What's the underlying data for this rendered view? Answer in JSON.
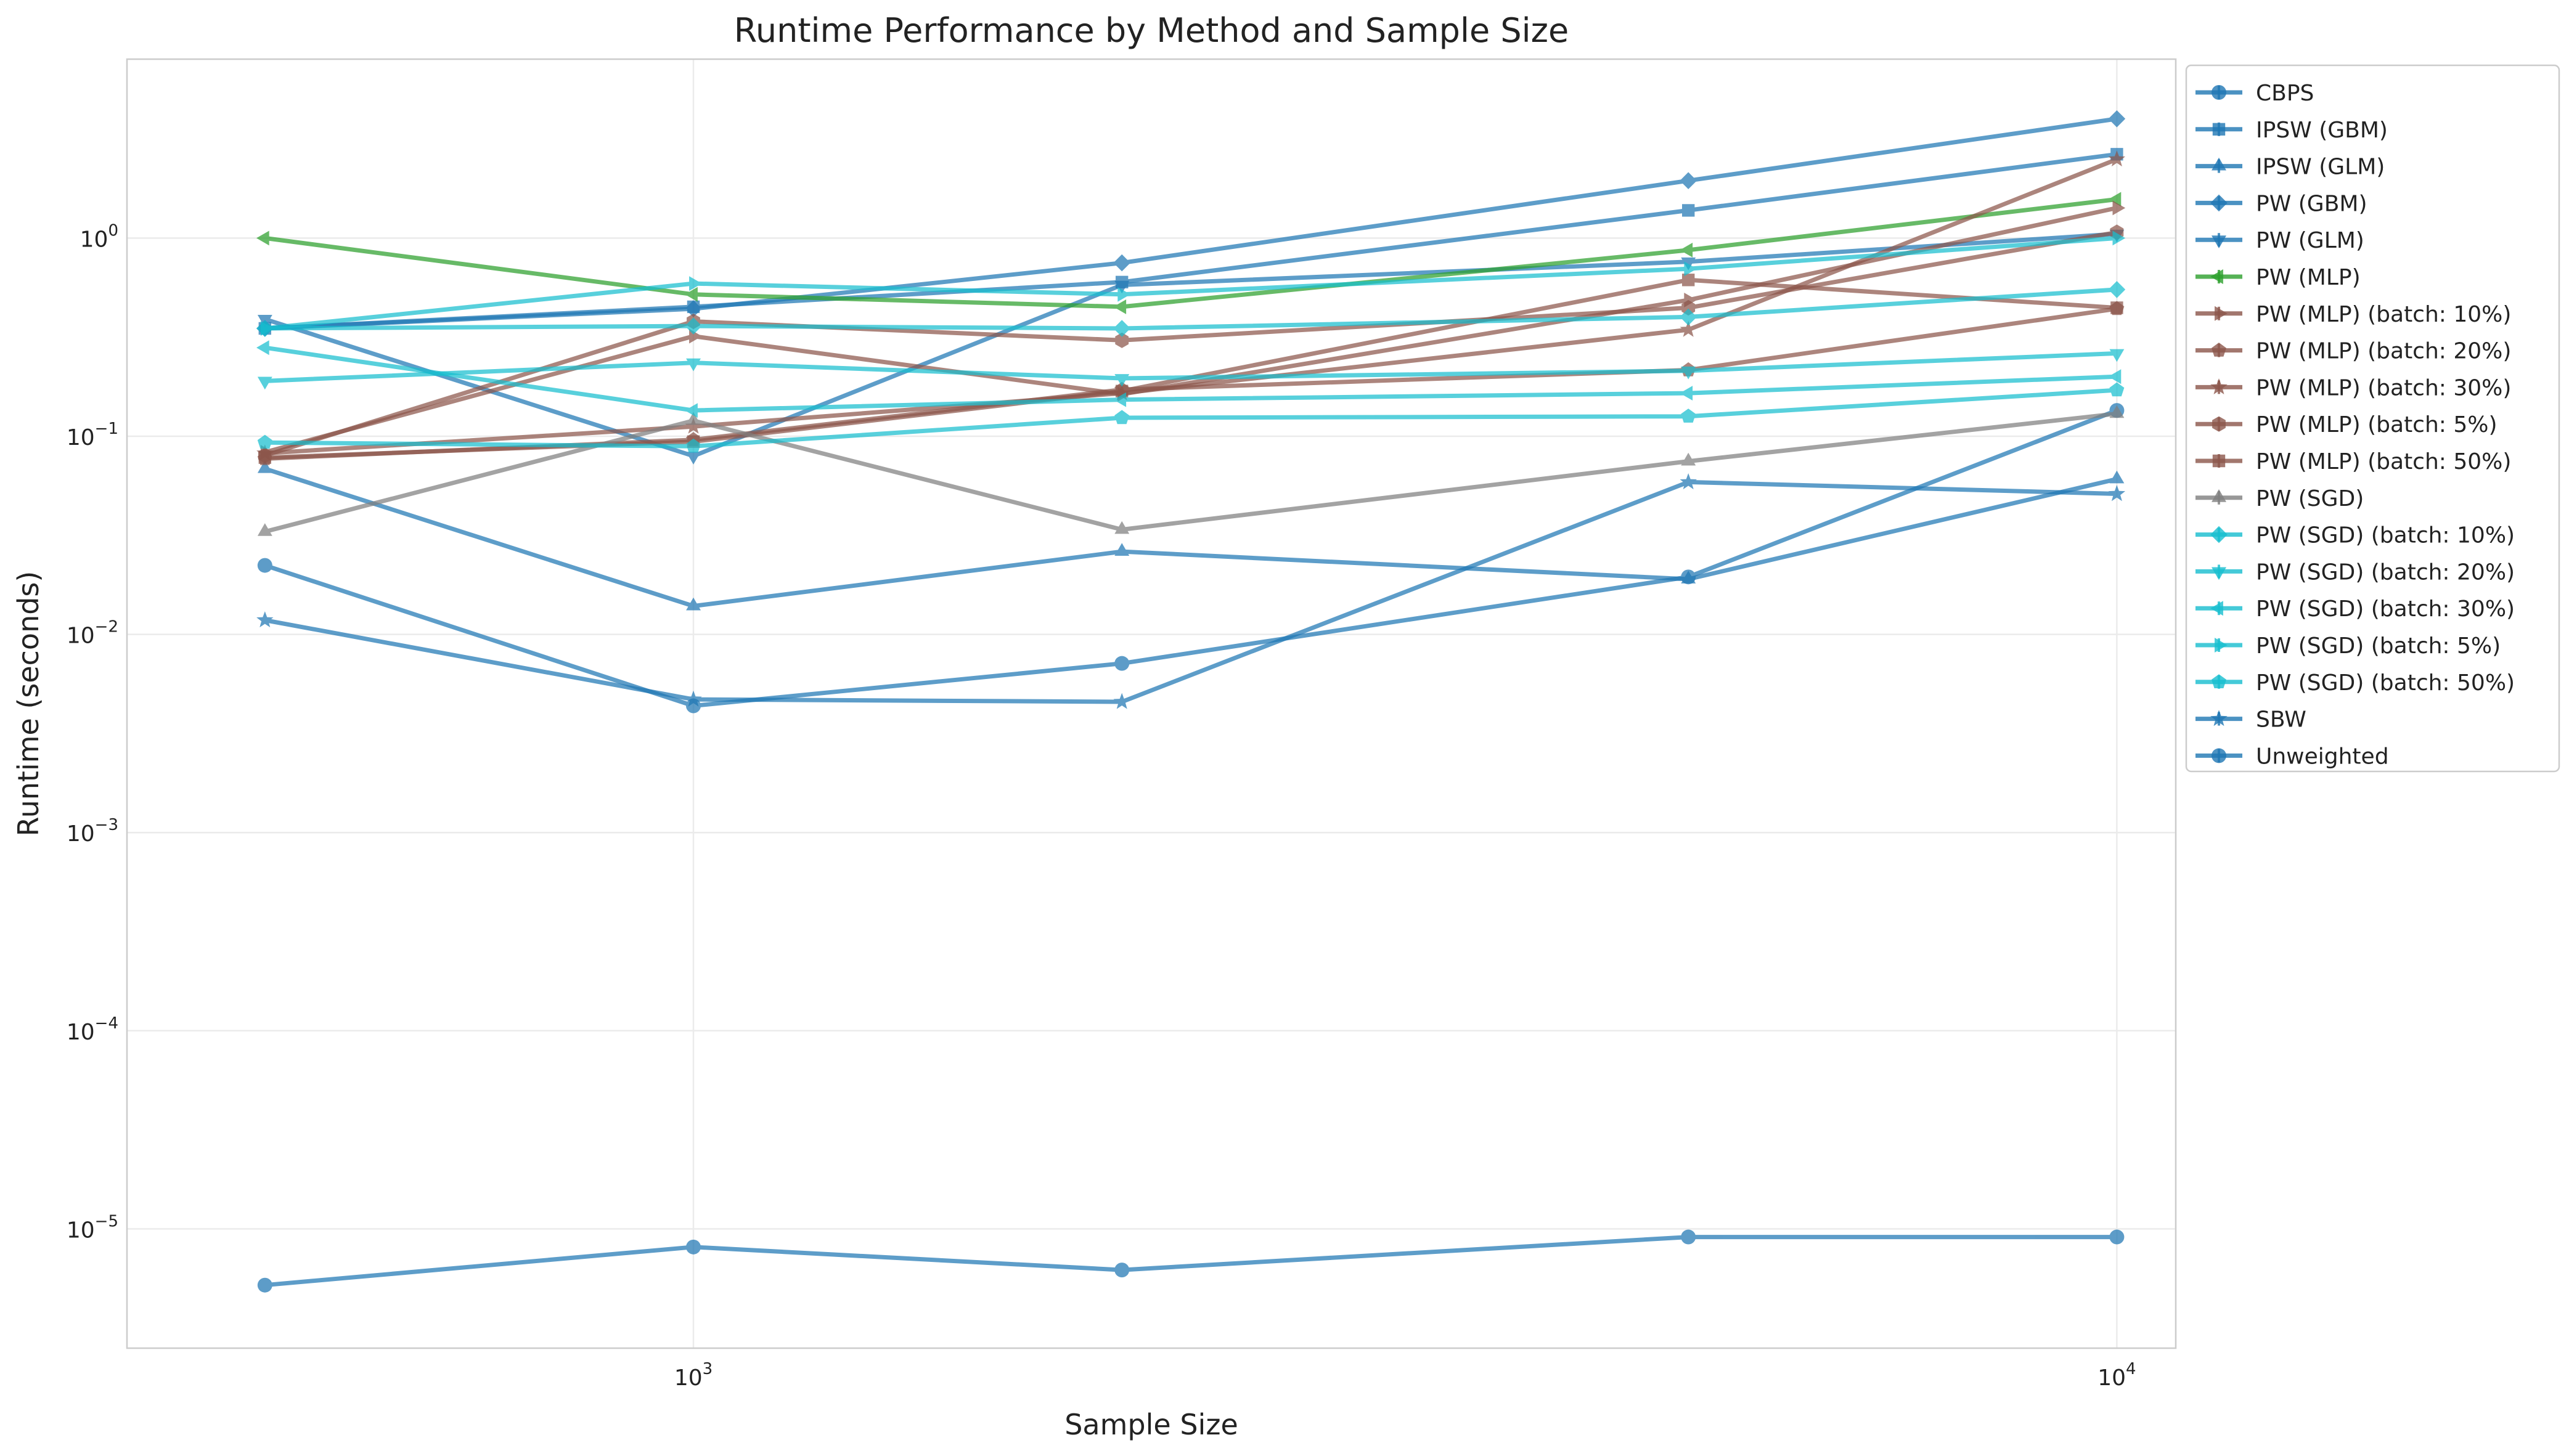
{
  "chart_data": {
    "type": "line",
    "title": "Runtime Performance by Method and Sample Size",
    "xlabel": "Sample Size",
    "ylabel": "Runtime (seconds)",
    "x_scale": "log",
    "y_scale": "log",
    "xlim": [
      400,
      11000
    ],
    "ylim": [
      2.5e-06,
      8
    ],
    "x_ticks": [
      {
        "value": 1000,
        "base": "10",
        "exp": "3"
      },
      {
        "value": 10000,
        "base": "10",
        "exp": "4"
      }
    ],
    "y_ticks": [
      {
        "value": 1e-05,
        "base": "10",
        "exp": "−5"
      },
      {
        "value": 0.0001,
        "base": "10",
        "exp": "−4"
      },
      {
        "value": 0.001,
        "base": "10",
        "exp": "−3"
      },
      {
        "value": 0.01,
        "base": "10",
        "exp": "−2"
      },
      {
        "value": 0.1,
        "base": "10",
        "exp": "−1"
      },
      {
        "value": 1,
        "base": "10",
        "exp": "0"
      }
    ],
    "grid": true,
    "legend_position": "outside-right",
    "x": [
      500,
      1000,
      2000,
      5000,
      10000
    ],
    "series": [
      {
        "name": "CBPS",
        "color": "#1f77b4",
        "marker": "circle",
        "values": [
          0.0223,
          0.00436,
          0.00714,
          0.0195,
          0.135
        ]
      },
      {
        "name": "IPSW (GBM)",
        "color": "#1f77b4",
        "marker": "square",
        "values": [
          0.35,
          0.45,
          0.6,
          1.38,
          2.65
        ]
      },
      {
        "name": "IPSW (GLM)",
        "color": "#1f77b4",
        "marker": "triangle-up",
        "values": [
          0.0686,
          0.0139,
          0.0262,
          0.019,
          0.0608
        ]
      },
      {
        "name": "PW (GBM)",
        "color": "#1f77b4",
        "marker": "diamond",
        "values": [
          0.35,
          0.44,
          0.75,
          1.95,
          4.0
        ]
      },
      {
        "name": "PW (GLM)",
        "color": "#1f77b4",
        "marker": "triangle-down",
        "values": [
          0.39,
          0.0795,
          0.58,
          0.76,
          1.05
        ]
      },
      {
        "name": "PW (MLP)",
        "color": "#2ca02c",
        "marker": "triangle-left",
        "values": [
          1.0,
          0.52,
          0.45,
          0.87,
          1.57
        ]
      },
      {
        "name": "PW (MLP) (batch: 10%)",
        "color": "#8c564b",
        "marker": "triangle-right",
        "values": [
          0.083,
          0.32,
          0.163,
          0.487,
          1.42
        ]
      },
      {
        "name": "PW (MLP) (batch: 20%)",
        "color": "#8c564b",
        "marker": "pentagon",
        "values": [
          0.077,
          0.096,
          0.172,
          0.216,
          0.44
        ]
      },
      {
        "name": "PW (MLP) (batch: 30%)",
        "color": "#8c564b",
        "marker": "star",
        "values": [
          0.082,
          0.112,
          0.165,
          0.345,
          2.5
        ]
      },
      {
        "name": "PW (MLP) (batch: 5%)",
        "color": "#8c564b",
        "marker": "hexagon",
        "values": [
          0.08,
          0.38,
          0.305,
          0.445,
          1.07
        ]
      },
      {
        "name": "PW (MLP) (batch: 50%)",
        "color": "#8c564b",
        "marker": "square",
        "values": [
          0.078,
          0.094,
          0.169,
          0.615,
          0.445
        ]
      },
      {
        "name": "PW (SGD)",
        "color": "#7f7f7f",
        "marker": "triangle-up",
        "values": [
          0.033,
          0.12,
          0.0338,
          0.0748,
          0.13
        ]
      },
      {
        "name": "PW (SGD) (batch: 10%)",
        "color": "#17becf",
        "marker": "diamond",
        "values": [
          0.35,
          0.36,
          0.35,
          0.4,
          0.55
        ]
      },
      {
        "name": "PW (SGD) (batch: 20%)",
        "color": "#17becf",
        "marker": "triangle-down",
        "values": [
          0.19,
          0.235,
          0.196,
          0.214,
          0.262
        ]
      },
      {
        "name": "PW (SGD) (batch: 30%)",
        "color": "#17becf",
        "marker": "triangle-left",
        "values": [
          0.28,
          0.135,
          0.153,
          0.165,
          0.2
        ]
      },
      {
        "name": "PW (SGD) (batch: 5%)",
        "color": "#17becf",
        "marker": "triangle-right",
        "values": [
          0.35,
          0.59,
          0.52,
          0.7,
          1.0
        ]
      },
      {
        "name": "PW (SGD) (batch: 50%)",
        "color": "#17becf",
        "marker": "pentagon",
        "values": [
          0.093,
          0.089,
          0.124,
          0.126,
          0.171
        ]
      },
      {
        "name": "SBW",
        "color": "#1f77b4",
        "marker": "star",
        "values": [
          0.0118,
          0.0047,
          0.00457,
          0.0587,
          0.0512
        ]
      },
      {
        "name": "Unweighted",
        "color": "#1f77b4",
        "marker": "circle",
        "values": [
          5.2e-06,
          8.1e-06,
          6.2e-06,
          9.1e-06,
          9.1e-06
        ]
      }
    ]
  }
}
